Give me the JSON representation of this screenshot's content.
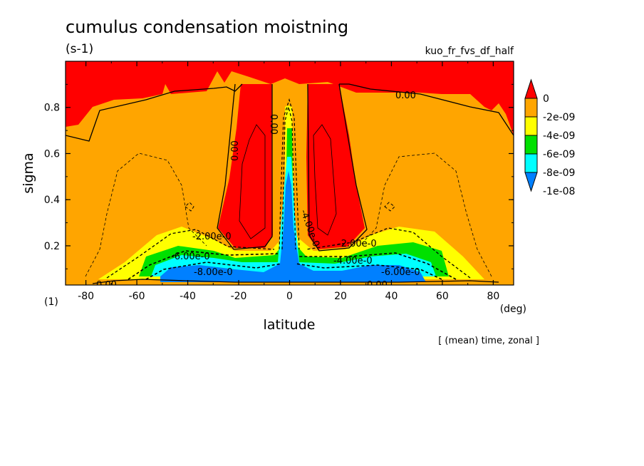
{
  "chart_data": {
    "type": "contour",
    "title": "cumulus condensation moistning",
    "units": "(s-1)",
    "run_label": "kuo_fr_fvs_df_half",
    "xlabel": "latitude",
    "x_unit": "(deg)",
    "ylabel": "sigma",
    "y_unit": "(1)",
    "footer": "[ (mean) time, zonal ]",
    "xlim": [
      -88,
      88
    ],
    "ylim": [
      1.0,
      0.03
    ],
    "y_inverted": true,
    "x_ticks": [
      "-80",
      "-60",
      "-40",
      "-20",
      "0",
      "20",
      "40",
      "60",
      "80"
    ],
    "x_tick_values": [
      -80,
      -60,
      -40,
      -20,
      0,
      20,
      40,
      60,
      80
    ],
    "y_ticks": [
      "0.2",
      "0.4",
      "0.6",
      "0.8"
    ],
    "y_tick_values": [
      0.2,
      0.4,
      0.6,
      0.8
    ],
    "colorbar": {
      "labels": [
        "0",
        "-2e-09",
        "-4e-09",
        "-6e-09",
        "-8e-09",
        "-1e-08"
      ],
      "colors": [
        "#ff0000",
        "#ffa500",
        "#ffff00",
        "#00e000",
        "#00ffff",
        "#0080ff"
      ]
    },
    "contour_labels": [
      "0.00",
      "0.00",
      "0.00",
      "0.00",
      "0.00",
      "-2.00e-0",
      "-2.00e-0",
      "-6.00e-0",
      "-6.00e-0",
      "-8.00e-0",
      "-4.00e-0",
      "-4.00e-0"
    ]
  }
}
